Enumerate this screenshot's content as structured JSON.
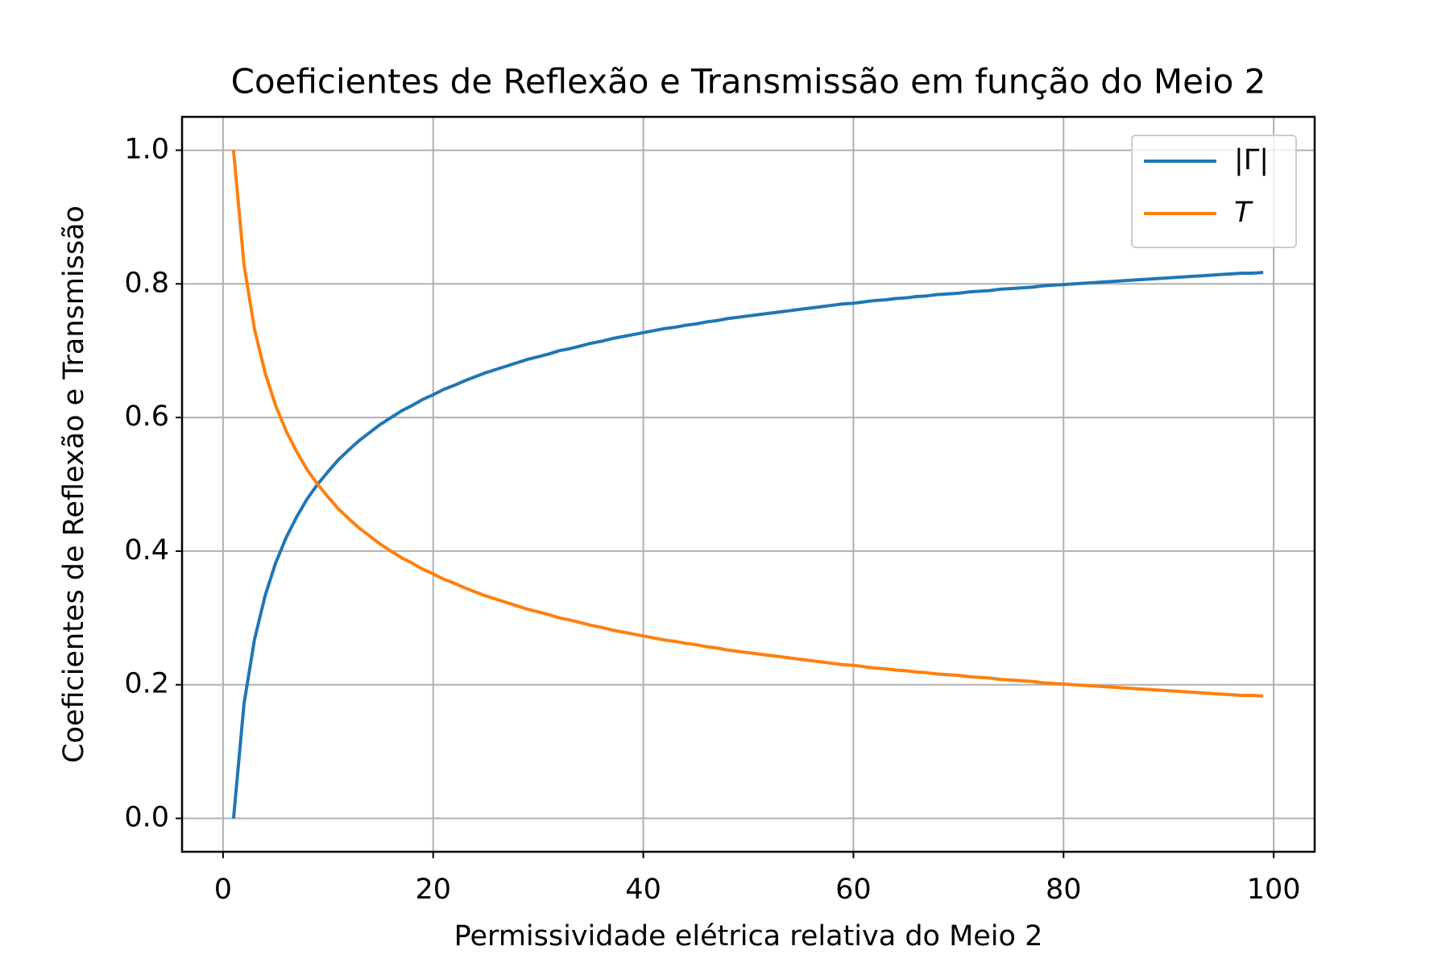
{
  "chart_data": {
    "type": "line",
    "title": "Coeficientes de Reflexão e Transmissão em função do Meio 2",
    "x_label": "Permissividade elétrica relativa do Meio 2",
    "y_label": "Coeficientes de Reflexão e Transmissão",
    "x": [
      1,
      2,
      3,
      4,
      5,
      6,
      7,
      8,
      9,
      10,
      11,
      12,
      13,
      14,
      15,
      16,
      17,
      18,
      19,
      20,
      21,
      22,
      23,
      24,
      25,
      26,
      27,
      28,
      29,
      30,
      31,
      32,
      33,
      34,
      35,
      36,
      37,
      38,
      39,
      40,
      41,
      42,
      43,
      44,
      45,
      46,
      47,
      48,
      49,
      50,
      51,
      52,
      53,
      54,
      55,
      56,
      57,
      58,
      59,
      60,
      61,
      62,
      63,
      64,
      65,
      66,
      67,
      68,
      69,
      70,
      71,
      72,
      73,
      74,
      75,
      76,
      77,
      78,
      79,
      80,
      81,
      82,
      83,
      84,
      85,
      86,
      87,
      88,
      89,
      90,
      91,
      92,
      93,
      94,
      95,
      96,
      97,
      98,
      99
    ],
    "series": [
      {
        "name": "|Γ|",
        "color": "#1f77b4",
        "values": [
          0,
          0.172,
          0.268,
          0.333,
          0.382,
          0.42,
          0.451,
          0.478,
          0.5,
          0.519,
          0.537,
          0.552,
          0.566,
          0.578,
          0.59,
          0.6,
          0.61,
          0.618,
          0.627,
          0.634,
          0.642,
          0.648,
          0.655,
          0.661,
          0.667,
          0.672,
          0.677,
          0.682,
          0.687,
          0.691,
          0.695,
          0.7,
          0.703,
          0.707,
          0.711,
          0.714,
          0.718,
          0.721,
          0.724,
          0.727,
          0.73,
          0.733,
          0.735,
          0.738,
          0.74,
          0.743,
          0.745,
          0.748,
          0.75,
          0.752,
          0.754,
          0.756,
          0.758,
          0.76,
          0.762,
          0.764,
          0.766,
          0.768,
          0.77,
          0.771,
          0.773,
          0.775,
          0.776,
          0.778,
          0.779,
          0.781,
          0.782,
          0.784,
          0.785,
          0.786,
          0.788,
          0.789,
          0.79,
          0.792,
          0.793,
          0.794,
          0.795,
          0.797,
          0.798,
          0.799,
          0.8,
          0.801,
          0.802,
          0.803,
          0.804,
          0.805,
          0.806,
          0.807,
          0.808,
          0.809,
          0.81,
          0.811,
          0.812,
          0.813,
          0.814,
          0.815,
          0.816,
          0.816,
          0.817
        ]
      },
      {
        "name": "T",
        "color": "#ff7f0e",
        "italic": true,
        "values": [
          1,
          0.828,
          0.732,
          0.667,
          0.618,
          0.58,
          0.549,
          0.522,
          0.5,
          0.481,
          0.463,
          0.448,
          0.434,
          0.422,
          0.41,
          0.4,
          0.39,
          0.382,
          0.373,
          0.366,
          0.358,
          0.352,
          0.345,
          0.339,
          0.333,
          0.328,
          0.323,
          0.318,
          0.313,
          0.309,
          0.305,
          0.3,
          0.297,
          0.293,
          0.289,
          0.286,
          0.282,
          0.279,
          0.276,
          0.273,
          0.27,
          0.267,
          0.265,
          0.262,
          0.26,
          0.257,
          0.255,
          0.252,
          0.25,
          0.248,
          0.246,
          0.244,
          0.242,
          0.24,
          0.238,
          0.236,
          0.234,
          0.232,
          0.23,
          0.229,
          0.227,
          0.225,
          0.224,
          0.222,
          0.221,
          0.219,
          0.218,
          0.216,
          0.215,
          0.214,
          0.212,
          0.211,
          0.21,
          0.208,
          0.207,
          0.206,
          0.205,
          0.203,
          0.202,
          0.201,
          0.2,
          0.199,
          0.198,
          0.197,
          0.196,
          0.195,
          0.194,
          0.193,
          0.192,
          0.191,
          0.19,
          0.189,
          0.188,
          0.187,
          0.186,
          0.185,
          0.184,
          0.184,
          0.183
        ]
      }
    ],
    "xlim": [
      -3.9,
      103.9
    ],
    "xticks": [
      0,
      20,
      40,
      60,
      80,
      100
    ],
    "ylim": [
      -0.05,
      1.05
    ],
    "yticks": [
      {
        "value": 0,
        "label": "0.0"
      },
      0.2,
      0.4,
      0.6,
      0.8,
      {
        "value": 1,
        "label": "1.0"
      }
    ],
    "grid": true,
    "legend": "upper right"
  }
}
